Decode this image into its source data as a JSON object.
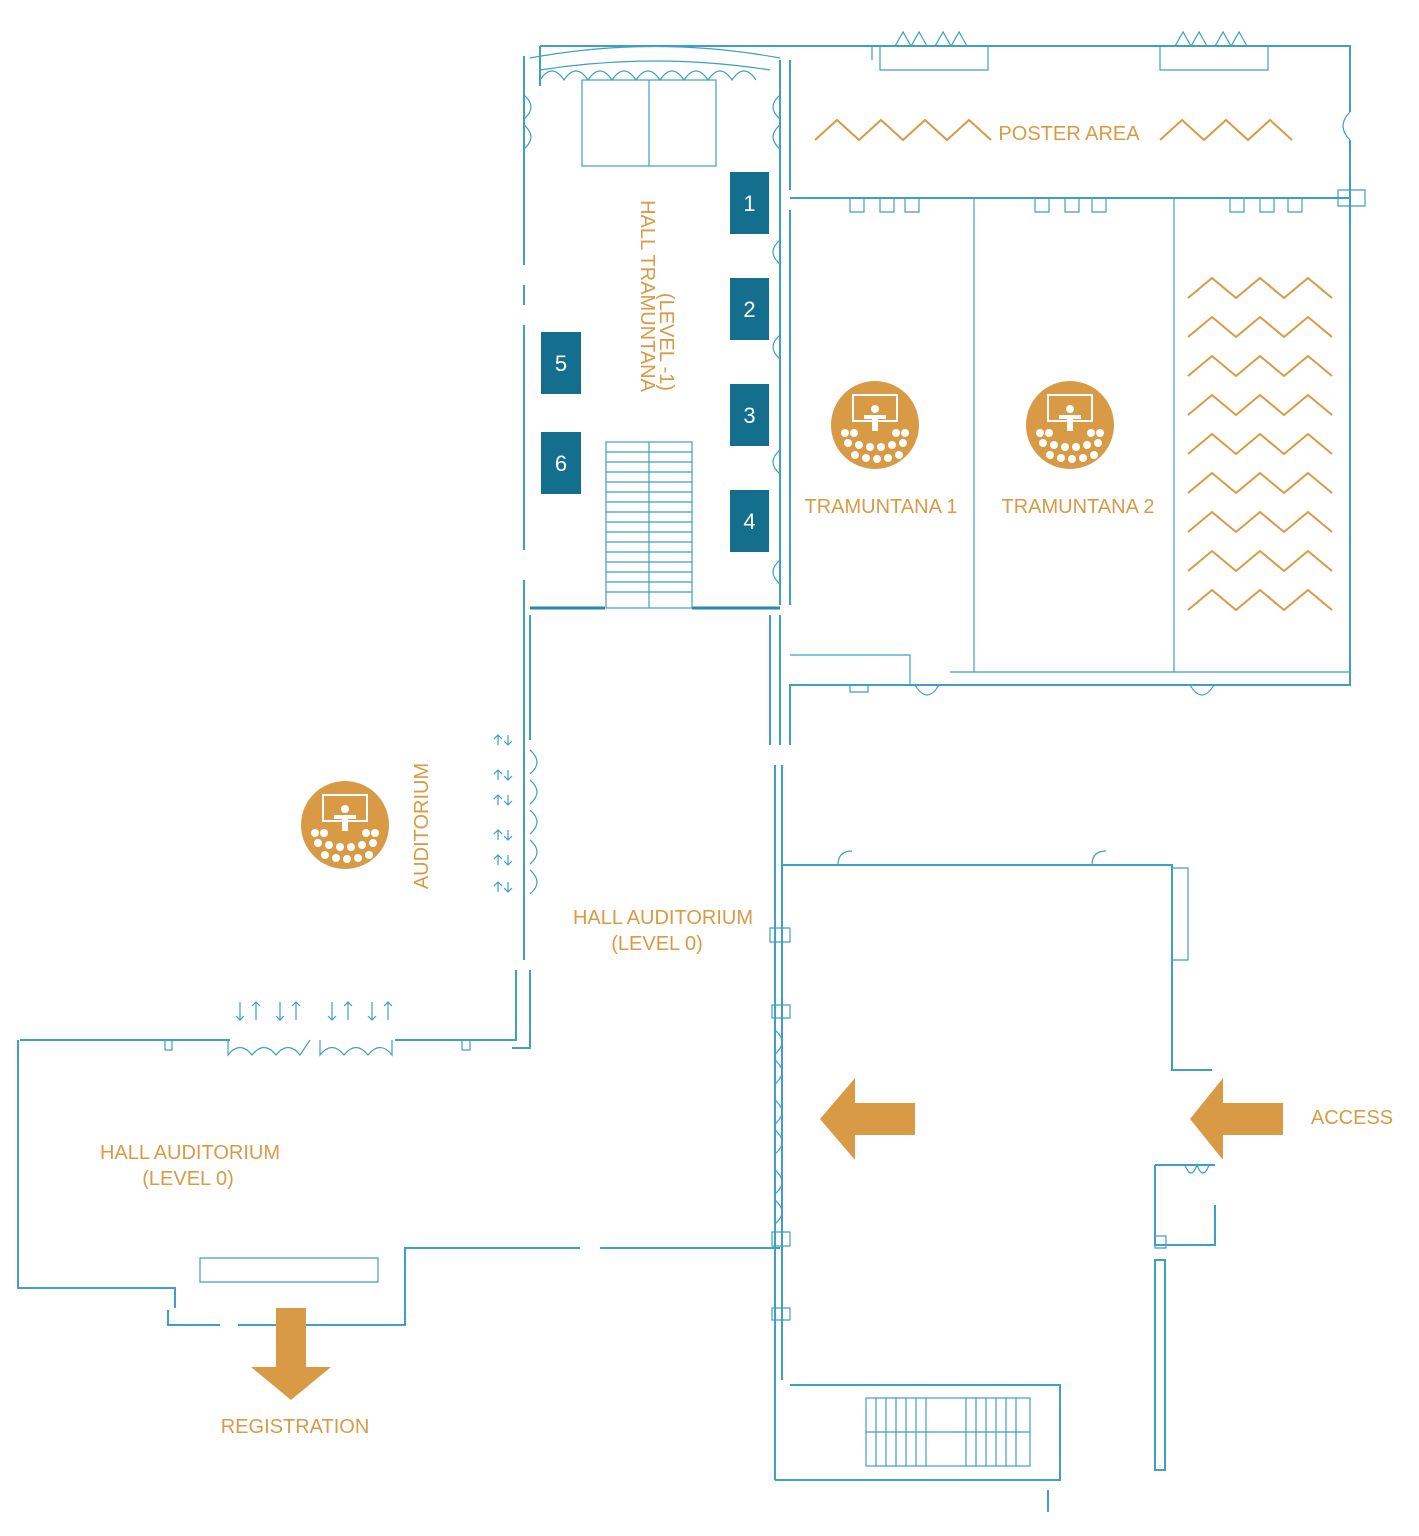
{
  "colors": {
    "wall": "#3f9fc4",
    "accent": "#d99a45",
    "booth": "#136f8d",
    "booth_text": "#ffffff",
    "background": "#ffffff"
  },
  "labels": {
    "poster_area": "POSTER AREA",
    "hall_tramuntana_1": "HALL TRAMUNTANA",
    "hall_tramuntana_2": "(LEVEL -1)",
    "tramuntana_1": "TRAMUNTANA 1",
    "tramuntana_2": "TRAMUNTANA 2",
    "auditorium": "AUDITORIUM",
    "hall_auditorium_center_1": "HALL AUDITORIUM",
    "hall_auditorium_center_2": "(LEVEL 0)",
    "hall_auditorium_left_1": "HALL AUDITORIUM",
    "hall_auditorium_left_2": "(LEVEL 0)",
    "access": "ACCESS",
    "registration": "REGISTRATION"
  },
  "booths": [
    "1",
    "2",
    "3",
    "4",
    "5",
    "6"
  ],
  "icons": {
    "room": "presentation-room-icon",
    "direction": "direction-arrow-icon"
  }
}
